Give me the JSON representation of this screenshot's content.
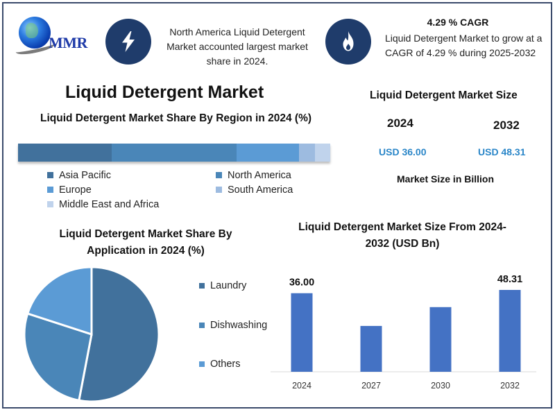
{
  "logo": {
    "text": "MMR"
  },
  "header": {
    "icon_left": "lightning-icon",
    "blurb": "North America Liquid Detergent Market accounted largest market share in 2024.",
    "icon_right": "fire-icon",
    "cagr_title": "4.29 % CAGR",
    "cagr_text": "Liquid Detergent Market to grow at a CAGR of 4.29 % during 2025-2032"
  },
  "main_title": "Liquid Detergent Market",
  "market_size": {
    "title": "Liquid Detergent Market Size",
    "years": [
      {
        "year": "2024",
        "value": "USD 36.00"
      },
      {
        "year": "2032",
        "value": "USD 48.31"
      }
    ],
    "unit": "Market Size in Billion"
  },
  "colors": {
    "asia_pacific": "#41719c",
    "north_america": "#4a86b8",
    "europe": "#5b9bd5",
    "south_america": "#9dbbe0",
    "mea": "#c0d3ec",
    "laundry": "#41719c",
    "dishwashing": "#4a86b8",
    "others": "#5b9bd5",
    "bars": "#4472c4",
    "icon_circle": "#1f3c6b",
    "usd_text": "#2a86c8"
  },
  "chart_data": [
    {
      "type": "bar",
      "orientation": "horizontal-stacked",
      "title": "Liquid Detergent Market Share By Region in 2024 (%)",
      "categories": [
        "Asia Pacific",
        "North America",
        "Europe",
        "South America",
        "Middle East and Africa"
      ],
      "values": [
        30,
        40,
        20,
        5,
        5
      ],
      "colors": [
        "#41719c",
        "#4a86b8",
        "#5b9bd5",
        "#9dbbe0",
        "#c0d3ec"
      ],
      "legend": "bottom"
    },
    {
      "type": "pie",
      "title": "Liquid Detergent Market Share By Application in 2024 (%)",
      "categories": [
        "Laundry",
        "Dishwashing",
        "Others"
      ],
      "values": [
        53,
        27,
        20
      ],
      "colors": [
        "#41719c",
        "#4a86b8",
        "#5b9bd5"
      ],
      "legend": "right"
    },
    {
      "type": "bar",
      "title": "Liquid Detergent Market Size From 2024-2032 (USD Bn)",
      "categories": [
        "2024",
        "2027",
        "2030",
        "2032"
      ],
      "values": [
        36.0,
        21.0,
        29.6,
        48.31
      ],
      "data_labels": [
        "36.00",
        "",
        "",
        "48.31"
      ],
      "relative_heights": [
        0.96,
        0.56,
        0.79,
        1.0
      ],
      "xlabel": "",
      "ylabel": "",
      "grid": false,
      "color": "#4472c4"
    }
  ]
}
